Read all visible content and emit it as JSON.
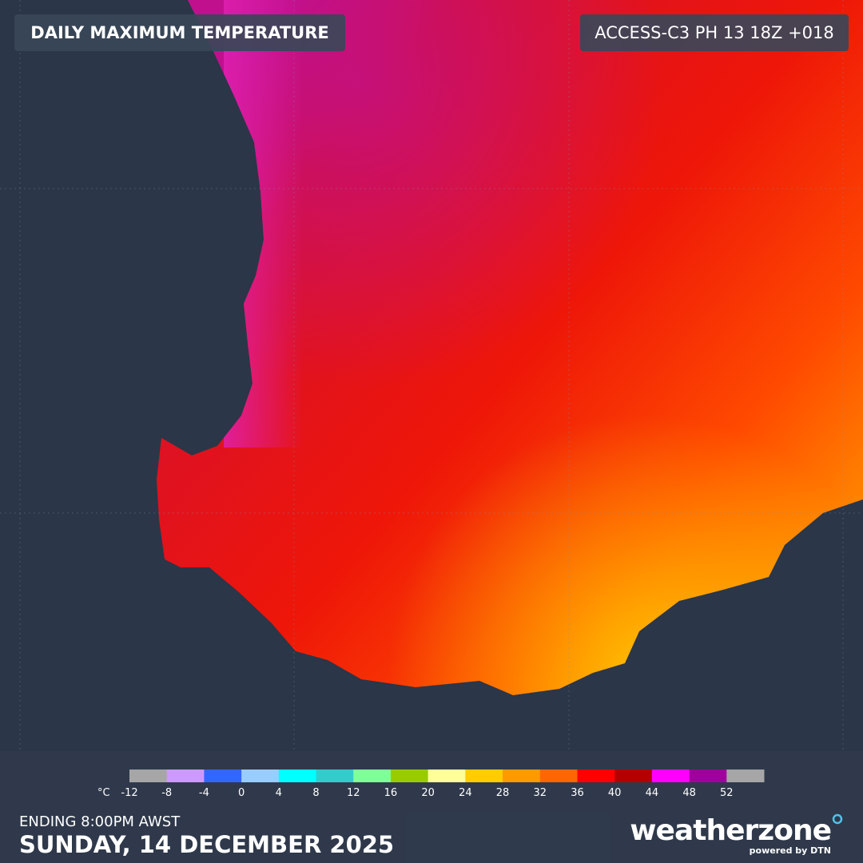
{
  "header": {
    "title": "DAILY MAXIMUM TEMPERATURE",
    "model": "ACCESS-C3 PH 13 18Z +018"
  },
  "legend": {
    "unit": "°C",
    "ticks": [
      -12,
      -8,
      -4,
      0,
      4,
      8,
      12,
      16,
      20,
      24,
      28,
      32,
      36,
      40,
      44,
      48,
      52
    ],
    "colors": [
      "#a6a6a6",
      "#cc99ff",
      "#3366ff",
      "#99ccff",
      "#00ffff",
      "#33cccc",
      "#80ff99",
      "#99cc00",
      "#ffff99",
      "#ffcc00",
      "#ff9900",
      "#ff6600",
      "#ff0000",
      "#b30000",
      "#ff00ff",
      "#a0009c",
      "#a6a6a6"
    ]
  },
  "footer": {
    "period": "ENDING 8:00PM AWST",
    "date": "SUNDAY, 14 DECEMBER 2025"
  },
  "logo": {
    "brand": "weatherzone",
    "tagline": "powered by DTN"
  }
}
